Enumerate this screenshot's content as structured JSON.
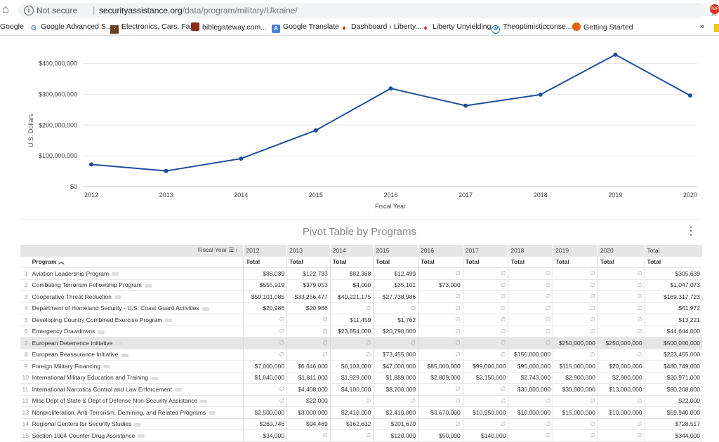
{
  "browser": {
    "not_secure": "Not secure",
    "url_domain": "securityassistance.org",
    "url_path": "/data/program/military/Ukraine/",
    "bookmarks": [
      {
        "label": "Google",
        "icon": "google-icon"
      },
      {
        "label": "Google Advanced S...",
        "icon": "google-icon"
      },
      {
        "label": "Electronics, Cars, Fa...",
        "icon": "shop-icon"
      },
      {
        "label": "biblegateway.com...",
        "icon": "bible-icon"
      },
      {
        "label": "Google Translate",
        "icon": "translate-icon"
      },
      {
        "label": "Dashboard ‹ Liberty...",
        "icon": "flame-icon"
      },
      {
        "label": "Liberty Unyielding",
        "icon": "flame-icon"
      },
      {
        "label": "Theoptimisticconse...",
        "icon": "wordpress-icon"
      },
      {
        "label": "Getting Started",
        "icon": "firefox-icon"
      }
    ],
    "more": "»"
  },
  "chart_data": {
    "type": "line",
    "x": [
      "2012",
      "2013",
      "2014",
      "2015",
      "2016",
      "2017",
      "2018",
      "2019",
      "2020"
    ],
    "series": [
      {
        "values": [
          72000000,
          51000000,
          91000000,
          183000000,
          319000000,
          263000000,
          299000000,
          429000000,
          296000000
        ],
        "color": "#1f4e9c"
      }
    ],
    "xlabel": "Fiscal Year",
    "ylabel": "U.S. Dollars",
    "yticks": [
      "$0",
      "$100,000,000",
      "$200,000,000",
      "$300,000,000",
      "$400,000,000"
    ],
    "ylim": [
      0,
      440000000
    ],
    "grid": true
  },
  "pivot": {
    "title": "Pivot Table by Programs",
    "fiscal_year_label": "Fiscal Year",
    "program_label": "Program",
    "years": [
      "2012",
      "2013",
      "2014",
      "2015",
      "2016",
      "2017",
      "2018",
      "2019",
      "2020",
      "Total"
    ],
    "sub_label": "Total",
    "null": "∅",
    "rows": [
      {
        "n": "1",
        "name": "Aviation Leadership Program",
        "v": [
          "$88,039",
          "$122,733",
          "$82,368",
          "$12,499",
          "",
          "",
          "",
          "",
          "",
          "$305,639"
        ]
      },
      {
        "n": "2",
        "name": "Combating Terrorism Fellowship Program",
        "v": [
          "$555,919",
          "$379,053",
          "$4,000",
          "$35,101",
          "$73,000",
          "",
          "",
          "",
          "",
          "$1,047,073"
        ]
      },
      {
        "n": "3",
        "name": "Cooperative Threat Reduction",
        "v": [
          "$59,101,085",
          "$33,256,477",
          "$49,221,175",
          "$27,738,986",
          "",
          "",
          "",
          "",
          "",
          "$169,317,723"
        ]
      },
      {
        "n": "4",
        "name": "Department of Homeland Security - U.S. Coast Guard Activities",
        "v": [
          "$20,986",
          "$20,986",
          "",
          "",
          "",
          "",
          "",
          "",
          "",
          "$41,972"
        ]
      },
      {
        "n": "5",
        "name": "Developing Country Combined Exercise Program",
        "v": [
          "",
          "",
          "$11,459",
          "$1,762",
          "",
          "",
          "",
          "",
          "",
          "$13,221"
        ]
      },
      {
        "n": "6",
        "name": "Emergency Drawdowns",
        "v": [
          "",
          "",
          "$23,854,000",
          "$20,790,000",
          "",
          "",
          "",
          "",
          "",
          "$44,644,000"
        ]
      },
      {
        "n": "7",
        "name": "European Deterrence Initiative",
        "v": [
          "",
          "",
          "",
          "",
          "",
          "",
          "",
          "$250,000,000",
          "$250,000,000",
          "$500,000,000"
        ],
        "hl": true
      },
      {
        "n": "8",
        "name": "European Reassurance Initiative",
        "v": [
          "",
          "",
          "",
          "$73,455,000",
          "",
          "",
          "$150,000,000",
          "",
          "",
          "$223,455,000"
        ]
      },
      {
        "n": "9",
        "name": "Foreign Military Financing",
        "v": [
          "$7,000,000",
          "$6,646,000",
          "$6,103,000",
          "$47,000,000",
          "$85,000,000",
          "$99,000,000",
          "$95,000,000",
          "$115,000,000",
          "$20,000,000",
          "$480,749,000"
        ]
      },
      {
        "n": "10",
        "name": "International Military Education and Training",
        "v": [
          "$1,840,000",
          "$1,811,000",
          "$1,929,000",
          "$1,889,000",
          "$2,809,000",
          "$2,150,000",
          "$2,743,000",
          "$2,900,000",
          "$2,900,000",
          "$20,971,000"
        ]
      },
      {
        "n": "11",
        "name": "International Narcotics Control and Law Enforcement",
        "v": [
          "",
          "$4,408,000",
          "$4,100,000",
          "$8,700,000",
          "",
          "",
          "$30,000,000",
          "$30,000,000",
          "$13,000,000",
          "$90,208,000"
        ]
      },
      {
        "n": "12",
        "name": "Misc Dept of State & Dept of Defense Non-Security Assistance",
        "v": [
          "",
          "$22,000",
          "",
          "",
          "",
          "",
          "",
          "",
          "",
          "$22,000"
        ]
      },
      {
        "n": "13",
        "name": "Nonproliferation, Anti-Terrorism, Demining, and Related Programs",
        "v": [
          "$2,500,000",
          "$3,000,000",
          "$2,410,000",
          "$2,410,000",
          "$3,670,000",
          "$10,950,000",
          "$10,000,000",
          "$15,000,000",
          "$10,000,000",
          "$59,940,000"
        ]
      },
      {
        "n": "14",
        "name": "Regional Centers for Security Studies",
        "v": [
          "$269,746",
          "$94,469",
          "$162,632",
          "$201,670",
          "",
          "",
          "",
          "",
          "",
          "$728,517"
        ]
      },
      {
        "n": "15",
        "name": "Section 1004 Counter-Drug Assistance",
        "v": [
          "$34,000",
          "",
          "",
          "$120,000",
          "$50,000",
          "$140,000",
          "",
          "",
          "",
          "$344,000"
        ]
      }
    ]
  }
}
